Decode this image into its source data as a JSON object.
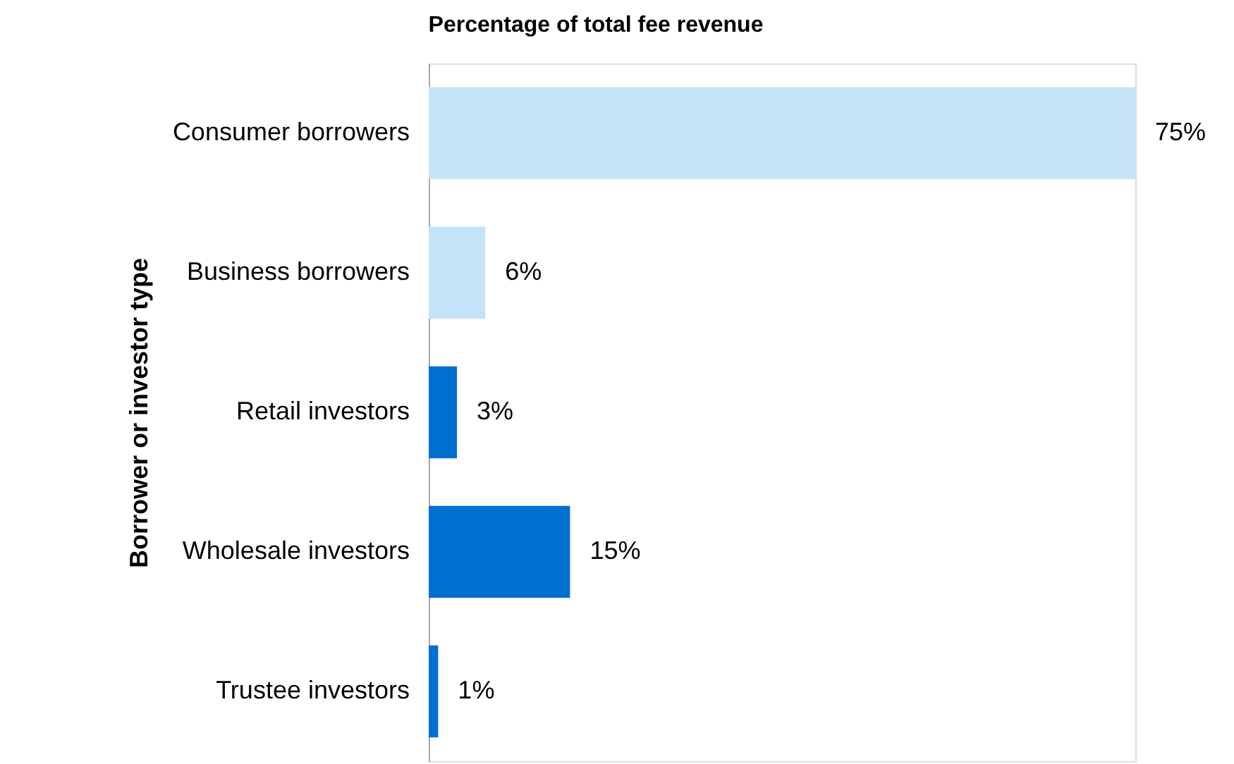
{
  "chart_data": {
    "type": "bar",
    "orientation": "horizontal",
    "xlabel": "Percentage of total fee revenue",
    "ylabel": "Borrower or investor type",
    "categories": [
      "Consumer borrowers",
      "Business borrowers",
      "Retail investors",
      "Wholesale investors",
      "Trustee investors"
    ],
    "values": [
      75,
      6,
      3,
      15,
      1
    ],
    "colors": [
      "#c5e3f7",
      "#c5e3f7",
      "#0070d0",
      "#0070d0",
      "#0070d0"
    ],
    "value_labels": [
      "75%",
      "6%",
      "3%",
      "15%",
      "1%"
    ],
    "grid": false
  }
}
